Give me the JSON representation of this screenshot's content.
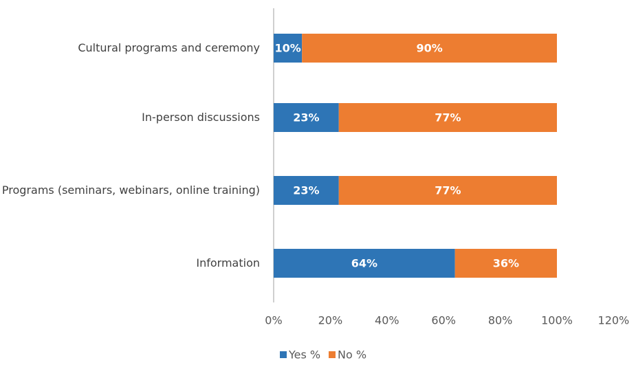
{
  "chart_data": {
    "type": "stacked_barh",
    "categories": [
      "Cultural programs and ceremony",
      "In-person discussions",
      "Programs (seminars, webinars, online training)",
      "Information"
    ],
    "series": [
      {
        "name": "Yes %",
        "color": "#2e75b6",
        "values": [
          10,
          23,
          23,
          64
        ],
        "value_labels": [
          "10%",
          "23%",
          "23%",
          "64%"
        ]
      },
      {
        "name": "No %",
        "color": "#ed7d31",
        "values": [
          90,
          77,
          77,
          36
        ],
        "value_labels": [
          "90%",
          "77%",
          "77%",
          "36%"
        ]
      }
    ],
    "xlim": [
      0,
      120
    ],
    "xticks": [
      {
        "value": 0,
        "label": "0%"
      },
      {
        "value": 20,
        "label": "20%"
      },
      {
        "value": 40,
        "label": "40%"
      },
      {
        "value": 60,
        "label": "60%"
      },
      {
        "value": 80,
        "label": "80%"
      },
      {
        "value": 100,
        "label": "100%"
      },
      {
        "value": 120,
        "label": "120%"
      }
    ],
    "legend": "bottom"
  }
}
